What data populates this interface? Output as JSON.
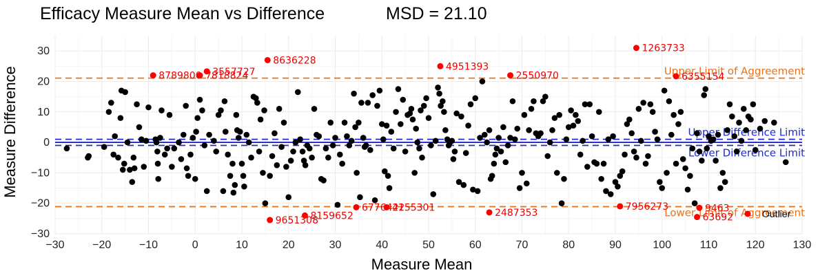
{
  "chart_data": {
    "type": "scatter",
    "title": "Efficacy Measure Mean vs Difference",
    "subtitle": "MSD = 21.10",
    "xlabel": "Measure Mean",
    "ylabel": "Measure Difference",
    "xlim": [
      -30,
      130
    ],
    "ylim": [
      -30,
      35
    ],
    "xticks": [
      -30,
      -20,
      -10,
      0,
      10,
      20,
      30,
      40,
      50,
      60,
      70,
      80,
      90,
      100,
      110,
      120,
      130
    ],
    "yticks": [
      -30,
      -20,
      -10,
      0,
      10,
      20,
      30
    ],
    "tick_labels_x": [
      "−30",
      "−20",
      "−10",
      "0",
      "10",
      "20",
      "30",
      "40",
      "50",
      "60",
      "70",
      "80",
      "90",
      "100",
      "110",
      "120",
      "130"
    ],
    "tick_labels_y": [
      "−30",
      "−20",
      "−10",
      "0",
      "10",
      "20",
      "30"
    ],
    "grid": true,
    "colors": {
      "points": "#000000",
      "outliers": "#ff0000",
      "agreement": "#e8731a",
      "difference": "#1f2bc9",
      "zero": "#0000cc"
    },
    "reference_lines": [
      {
        "label": "Upper Limit of Aggreement",
        "y": 21.1,
        "style": "dashed",
        "color": "#e8731a"
      },
      {
        "label": "Lower Limit of Aggreement",
        "y": -21.1,
        "style": "dashed",
        "color": "#e8731a"
      },
      {
        "label": "Upper Difference Limit",
        "y": 1.0,
        "style": "dashed",
        "color": "#1f2bc9"
      },
      {
        "label": "Lower Difference Limit",
        "y": -1.0,
        "style": "dashed",
        "color": "#1f2bc9"
      },
      {
        "label": "",
        "y": 0,
        "style": "solid",
        "color": "#0000cc"
      }
    ],
    "legend": {
      "position": "bottom-right",
      "entries": [
        {
          "label": "Outlier",
          "color": "#ff0000"
        }
      ]
    },
    "outliers": [
      {
        "x": 15.5,
        "y": 27,
        "label": "8636228"
      },
      {
        "x": -9,
        "y": 22,
        "label": "8789800"
      },
      {
        "x": 1,
        "y": 22,
        "label": "7818824"
      },
      {
        "x": 2.5,
        "y": 23.3,
        "label": "3557727"
      },
      {
        "x": 52.5,
        "y": 25,
        "label": "4951393"
      },
      {
        "x": 67.5,
        "y": 22,
        "label": "2550970"
      },
      {
        "x": 94.5,
        "y": 31,
        "label": "1263733"
      },
      {
        "x": 103,
        "y": 21.7,
        "label": "6355154"
      },
      {
        "x": 16,
        "y": -25.5,
        "label": "9651308"
      },
      {
        "x": 23.5,
        "y": -24,
        "label": "8159652"
      },
      {
        "x": 34.5,
        "y": -21.3,
        "label": "6776422"
      },
      {
        "x": 41,
        "y": -21.3,
        "label": "4155301"
      },
      {
        "x": 63,
        "y": -23,
        "label": "2487353"
      },
      {
        "x": 91,
        "y": -21,
        "label": "7956273"
      },
      {
        "x": 108,
        "y": -21.5,
        "label": "9463"
      },
      {
        "x": 107.5,
        "y": -24.5,
        "label": "63692"
      }
    ],
    "points": [
      [
        -27.5,
        -2
      ],
      [
        -23,
        -5
      ],
      [
        -22.8,
        -4.5
      ],
      [
        -19.5,
        -1.5
      ],
      [
        -18.5,
        10
      ],
      [
        -18,
        13
      ],
      [
        -17.5,
        -4
      ],
      [
        -17.2,
        2
      ],
      [
        -16.5,
        -5
      ],
      [
        -16,
        8
      ],
      [
        -15.8,
        17
      ],
      [
        -15.5,
        -9
      ],
      [
        -15.2,
        -7
      ],
      [
        -15,
        16.5
      ],
      [
        -14.5,
        0
      ],
      [
        -14,
        -9
      ],
      [
        -13.5,
        -13
      ],
      [
        -13.2,
        -5
      ],
      [
        -13,
        -8.5
      ],
      [
        -12.5,
        12.5
      ],
      [
        -12,
        5
      ],
      [
        -11.5,
        1
      ],
      [
        -11,
        -8
      ],
      [
        -10.5,
        0.5
      ],
      [
        -10,
        11.5
      ],
      [
        -8.5,
        1
      ],
      [
        -8.3,
        0
      ],
      [
        -8.1,
        -3
      ],
      [
        -8,
        -7
      ],
      [
        -7.9,
        -12
      ],
      [
        -7.5,
        1.5
      ],
      [
        -7.2,
        10.5
      ],
      [
        -6.5,
        -4
      ],
      [
        -6,
        -2
      ],
      [
        -5.5,
        9
      ],
      [
        -5,
        -8
      ],
      [
        -4.5,
        -2
      ],
      [
        -3.5,
        0
      ],
      [
        -3,
        -5.5
      ],
      [
        -2.5,
        2.5
      ],
      [
        -2,
        12
      ],
      [
        -1.8,
        -8.5
      ],
      [
        -1.5,
        -11
      ],
      [
        -1,
        -4
      ],
      [
        -0.5,
        1.5
      ],
      [
        0,
        -12
      ],
      [
        0.2,
        3.5
      ],
      [
        0.5,
        8
      ],
      [
        1,
        14
      ],
      [
        1.5,
        10.5
      ],
      [
        2,
        -1
      ],
      [
        2.5,
        -16
      ],
      [
        3,
        2.5
      ],
      [
        4,
        0.5
      ],
      [
        4.5,
        -3
      ],
      [
        5,
        9
      ],
      [
        5.5,
        10.5
      ],
      [
        6,
        -16
      ],
      [
        6.3,
        13.5
      ],
      [
        6.5,
        3.5
      ],
      [
        7,
        -4
      ],
      [
        7.5,
        -11
      ],
      [
        8,
        -7
      ],
      [
        8.2,
        -16.5
      ],
      [
        8.5,
        -14
      ],
      [
        8.8,
        9
      ],
      [
        9,
        4
      ],
      [
        9.3,
        1.5
      ],
      [
        9.6,
        3.5
      ],
      [
        10,
        -7
      ],
      [
        10.3,
        -11
      ],
      [
        10.5,
        -14.5
      ],
      [
        11,
        2.5
      ],
      [
        11.5,
        0
      ],
      [
        12,
        -5
      ],
      [
        12.5,
        15
      ],
      [
        13,
        14.5
      ],
      [
        13.3,
        13
      ],
      [
        13.7,
        -3
      ],
      [
        14,
        7.5
      ],
      [
        14.5,
        -10
      ],
      [
        14.8,
        10.5
      ],
      [
        15,
        -20
      ],
      [
        16,
        -11
      ],
      [
        16.5,
        -4.5
      ],
      [
        17,
        3
      ],
      [
        17.5,
        -7.5
      ],
      [
        18,
        11
      ],
      [
        18.5,
        -1.5
      ],
      [
        19,
        6.5
      ],
      [
        19.5,
        -8
      ],
      [
        20,
        -18
      ],
      [
        20.5,
        -6
      ],
      [
        21,
        -3
      ],
      [
        21.5,
        0
      ],
      [
        22,
        16.5
      ],
      [
        22.5,
        1
      ],
      [
        23,
        -3
      ],
      [
        23.3,
        -6
      ],
      [
        23.6,
        -7.5
      ],
      [
        24,
        -1
      ],
      [
        24.5,
        -2
      ],
      [
        25,
        -5
      ],
      [
        25.5,
        11
      ],
      [
        26,
        2.5
      ],
      [
        26.5,
        2
      ],
      [
        27,
        -12
      ],
      [
        27.5,
        -12.5
      ],
      [
        28,
        -2
      ],
      [
        28.5,
        -5
      ],
      [
        29,
        6.5
      ],
      [
        29.5,
        -1
      ],
      [
        30,
        1.5
      ],
      [
        30.5,
        -20.5
      ],
      [
        31,
        -4
      ],
      [
        31.5,
        -7
      ],
      [
        32,
        6.5
      ],
      [
        32.5,
        2
      ],
      [
        33,
        -1
      ],
      [
        33.5,
        0.5
      ],
      [
        34,
        16
      ],
      [
        34.3,
        5
      ],
      [
        34.6,
        -10
      ],
      [
        35,
        6.5
      ],
      [
        35.3,
        -18
      ],
      [
        35.6,
        13
      ],
      [
        36,
        1.5
      ],
      [
        36.3,
        -1.5
      ],
      [
        36.6,
        -1
      ],
      [
        37,
        13
      ],
      [
        37.5,
        -2.5
      ],
      [
        38,
        15.5
      ],
      [
        38.5,
        -19
      ],
      [
        39,
        12
      ],
      [
        39.5,
        17
      ],
      [
        40,
        6
      ],
      [
        40.3,
        1
      ],
      [
        40.6,
        -9.5
      ],
      [
        41,
        5.5
      ],
      [
        41.3,
        -11
      ],
      [
        41.6,
        -15
      ],
      [
        42,
        3.5
      ],
      [
        42.5,
        -2
      ],
      [
        43,
        10
      ],
      [
        43.5,
        17.5
      ],
      [
        44,
        6
      ],
      [
        44.5,
        14
      ],
      [
        45,
        -3
      ],
      [
        45.5,
        9
      ],
      [
        46,
        9.5
      ],
      [
        46.3,
        11
      ],
      [
        46.6,
        7.5
      ],
      [
        47,
        -10
      ],
      [
        47.3,
        4.5
      ],
      [
        47.6,
        0
      ],
      [
        48,
        -2
      ],
      [
        48.3,
        10.5
      ],
      [
        48.6,
        -5
      ],
      [
        49,
        12
      ],
      [
        49.5,
        14.5
      ],
      [
        50,
        8
      ],
      [
        50.5,
        -1
      ],
      [
        51,
        -17
      ],
      [
        51.5,
        0.5
      ],
      [
        52,
        18
      ],
      [
        52.3,
        16
      ],
      [
        52.6,
        12
      ],
      [
        53,
        13.5
      ],
      [
        53.3,
        10
      ],
      [
        53.6,
        4
      ],
      [
        54,
        1
      ],
      [
        54.3,
        -1
      ],
      [
        54.6,
        0
      ],
      [
        55,
        0.5
      ],
      [
        55.3,
        -5.5
      ],
      [
        55.6,
        -3
      ],
      [
        56,
        9.5
      ],
      [
        56.5,
        -13
      ],
      [
        57,
        8.5
      ],
      [
        57.5,
        -14
      ],
      [
        58,
        -3.5
      ],
      [
        58.5,
        5.5
      ],
      [
        59,
        12.5
      ],
      [
        59.5,
        -15.5
      ],
      [
        60,
        14.5
      ],
      [
        60.5,
        -16
      ],
      [
        61,
        1.5
      ],
      [
        61.5,
        20
      ],
      [
        62,
        2.5
      ],
      [
        62.5,
        0
      ],
      [
        63,
        4
      ],
      [
        63.3,
        -12
      ],
      [
        63.6,
        -11
      ],
      [
        64,
        -7
      ],
      [
        64.3,
        -4
      ],
      [
        64.6,
        -2
      ],
      [
        65,
        1.5
      ],
      [
        65.5,
        -3
      ],
      [
        66,
        5
      ],
      [
        66.5,
        -6.5
      ],
      [
        67,
        -1
      ],
      [
        67.5,
        1.5
      ],
      [
        68,
        13.5
      ],
      [
        68.5,
        1
      ],
      [
        69,
        4.5
      ],
      [
        69.5,
        -15
      ],
      [
        70,
        -10
      ],
      [
        70.5,
        9
      ],
      [
        71,
        -13.5
      ],
      [
        71.5,
        4
      ],
      [
        72,
        11
      ],
      [
        72.5,
        13.5
      ],
      [
        73,
        3
      ],
      [
        73.5,
        2
      ],
      [
        74,
        3
      ],
      [
        74.5,
        13.5
      ],
      [
        75,
        15
      ],
      [
        75.5,
        -4.5
      ],
      [
        76,
        0
      ],
      [
        76.5,
        4
      ],
      [
        77,
        8
      ],
      [
        77.5,
        -10
      ],
      [
        78,
        9
      ],
      [
        78.5,
        -20
      ],
      [
        79,
        -12
      ],
      [
        79.5,
        1
      ],
      [
        80,
        5
      ],
      [
        80.5,
        10.5
      ],
      [
        81,
        5.5
      ],
      [
        81.5,
        9
      ],
      [
        82,
        7
      ],
      [
        82.5,
        -4
      ],
      [
        83,
        0.5
      ],
      [
        83.5,
        12.5
      ],
      [
        84,
        -8
      ],
      [
        84.5,
        12.5
      ],
      [
        85,
        2
      ],
      [
        85.5,
        -6.5
      ],
      [
        86,
        -7
      ],
      [
        86.5,
        10
      ],
      [
        87,
        -12
      ],
      [
        87.5,
        -7
      ],
      [
        88,
        -16
      ],
      [
        88.5,
        1
      ],
      [
        89,
        -17
      ],
      [
        89.5,
        2
      ],
      [
        90,
        -13
      ],
      [
        90.5,
        -14.5
      ],
      [
        91,
        -11
      ],
      [
        91.5,
        -9.5
      ],
      [
        92,
        -4
      ],
      [
        92.5,
        6
      ],
      [
        93,
        7.5
      ],
      [
        93.5,
        3
      ],
      [
        94,
        -3
      ],
      [
        94.5,
        -5
      ],
      [
        95,
        11
      ],
      [
        95.5,
        0.5
      ],
      [
        96,
        13
      ],
      [
        96.5,
        -7
      ],
      [
        97,
        -4.5
      ],
      [
        97.5,
        12.5
      ],
      [
        98,
        10
      ],
      [
        98.5,
        3.5
      ],
      [
        99,
        1
      ],
      [
        99.5,
        -13
      ],
      [
        100,
        -15
      ],
      [
        100.5,
        17
      ],
      [
        101,
        -10
      ],
      [
        101.5,
        13.5
      ],
      [
        102,
        2.5
      ],
      [
        102.5,
        9
      ],
      [
        103,
        -7
      ],
      [
        103.5,
        6
      ],
      [
        104,
        10
      ],
      [
        104.5,
        -5.5
      ],
      [
        105,
        -8.5
      ],
      [
        105.5,
        -15.5
      ],
      [
        106,
        -11
      ],
      [
        106.5,
        -2
      ],
      [
        107,
        -20
      ],
      [
        107.5,
        3
      ],
      [
        108,
        -3
      ],
      [
        108.5,
        -6
      ],
      [
        109,
        15.5
      ],
      [
        109.3,
        17.5
      ],
      [
        109.6,
        -2
      ],
      [
        110,
        2
      ],
      [
        110.5,
        0.5
      ],
      [
        111,
        1
      ],
      [
        111.5,
        -6
      ],
      [
        112,
        2.5
      ],
      [
        112.5,
        -15
      ],
      [
        113,
        -10
      ],
      [
        113.5,
        -13
      ],
      [
        114,
        4
      ],
      [
        114.5,
        12.5
      ],
      [
        115,
        8.5
      ],
      [
        115.5,
        2
      ],
      [
        116,
        -3
      ],
      [
        116.5,
        6.5
      ],
      [
        117,
        0.5
      ],
      [
        117.5,
        11
      ],
      [
        118,
        4
      ],
      [
        118.5,
        8.5
      ],
      [
        119,
        7.5
      ],
      [
        119.5,
        12.5
      ],
      [
        120,
        -2.5
      ],
      [
        121,
        4.5
      ],
      [
        122,
        7
      ],
      [
        124,
        6.5
      ],
      [
        126.5,
        -6.5
      ]
    ]
  }
}
